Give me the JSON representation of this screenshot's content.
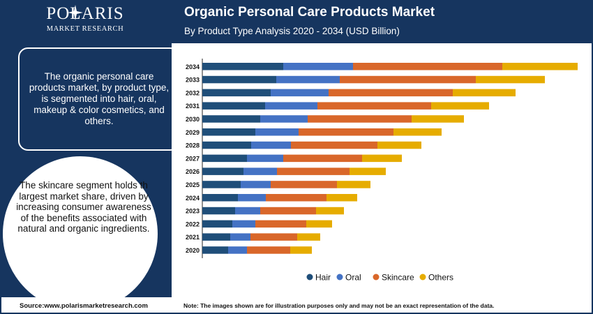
{
  "brand": {
    "name": "POLARIS",
    "tagline": "MARKET RESEARCH"
  },
  "header": {
    "title": "Organic Personal Care Products Market",
    "subtitle": "By Product Type Analysis 2020 - 2034 (USD Billion)"
  },
  "info_box": {
    "text": "The organic personal care products market, by product type, is segmented into hair, oral, makeup & color cosmetics, and others."
  },
  "circle_text": "The skincare segment holds th largest market share, driven by increasing consumer awareness of the benefits associated with natural and organic ingredients.",
  "footer": {
    "source": "Source:www.polarismarketresearch.com",
    "note": "Note: The images shown are for illustration purposes only and may not be an exact representation of the data."
  },
  "chart_data": {
    "type": "bar",
    "orientation": "horizontal",
    "stacked": true,
    "title": "Organic Personal Care Products Market",
    "subtitle": "By Product Type Analysis 2020 - 2034 (USD Billion)",
    "categories": [
      "2034",
      "2033",
      "2032",
      "2031",
      "2030",
      "2029",
      "2028",
      "2027",
      "2026",
      "2025",
      "2024",
      "2023",
      "2022",
      "2021",
      "2020"
    ],
    "series": [
      {
        "name": "Hair",
        "color": "#1f4e79",
        "values": [
          116,
          106,
          98,
          90,
          83,
          76,
          70,
          64,
          59,
          55,
          51,
          47,
          43,
          40,
          37
        ]
      },
      {
        "name": "Oral",
        "color": "#4472c4",
        "values": [
          100,
          91,
          83,
          75,
          68,
          62,
          57,
          52,
          48,
          43,
          40,
          36,
          33,
          29,
          27
        ]
      },
      {
        "name": "Skincare",
        "color": "#d9672a",
        "values": [
          214,
          195,
          178,
          163,
          149,
          136,
          124,
          113,
          104,
          95,
          87,
          80,
          73,
          67,
          62
        ]
      },
      {
        "name": "Others",
        "color": "#e6ac00",
        "values": [
          108,
          99,
          90,
          83,
          75,
          69,
          63,
          57,
          52,
          48,
          44,
          40,
          37,
          33,
          31
        ]
      }
    ],
    "legend_position": "bottom",
    "grid": false
  }
}
